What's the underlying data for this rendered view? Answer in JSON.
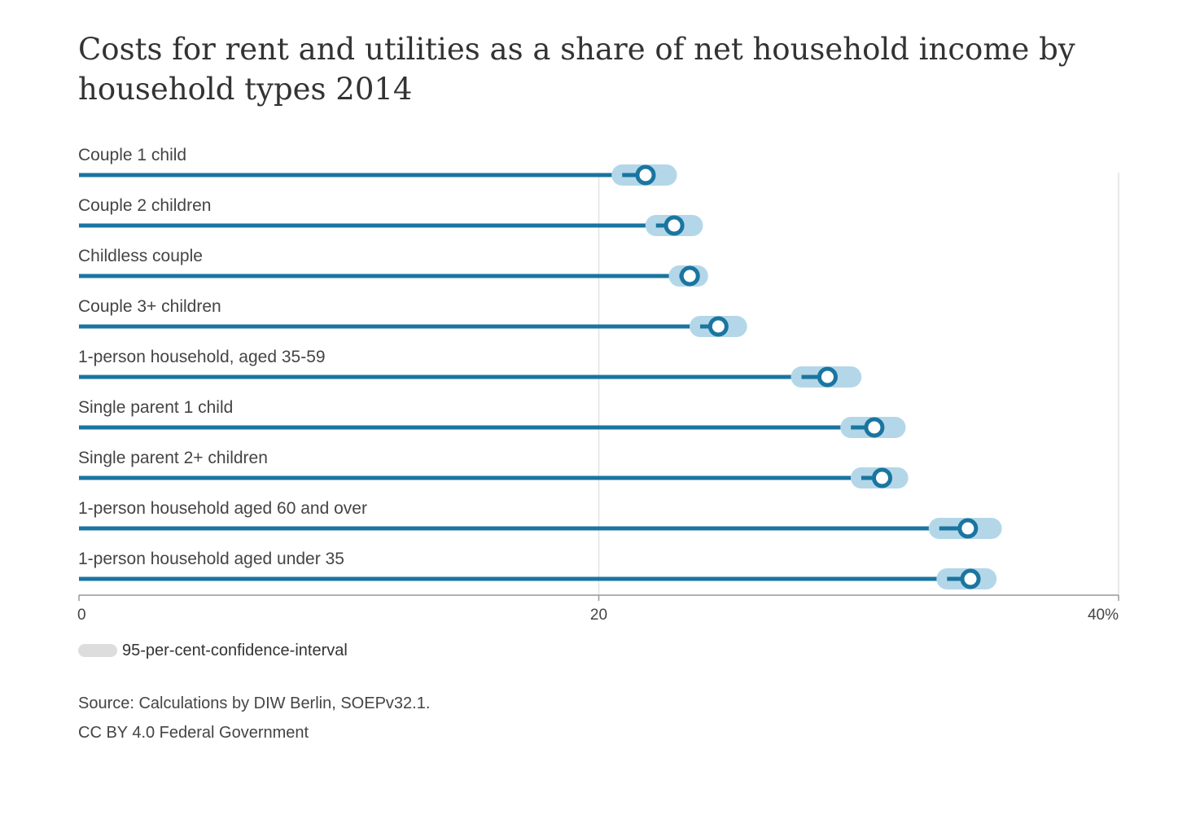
{
  "chart_data": {
    "type": "dot-with-confidence-interval",
    "title": "Costs for rent and utilities as a share of net household income by household types 2014",
    "categories": [
      "Couple 1 child",
      "Couple 2 children",
      "Childless couple",
      "Couple 3+ children",
      "1-person household, aged 35-59",
      "Single parent 1 child",
      "Single parent 2+ children",
      "1-person household aged 60 and over",
      "1-person household aged under 35"
    ],
    "series": [
      {
        "name": "",
        "values": [
          21.8,
          22.9,
          23.5,
          24.6,
          28.8,
          30.6,
          30.9,
          34.2,
          34.3
        ],
        "ci_low": [
          20.9,
          22.2,
          23.1,
          23.9,
          27.8,
          29.7,
          30.1,
          33.1,
          33.4
        ],
        "ci_high": [
          22.6,
          23.6,
          23.8,
          25.3,
          29.7,
          31.4,
          31.5,
          35.1,
          34.9
        ]
      }
    ],
    "xlim": [
      0,
      40
    ],
    "ticks": [
      {
        "value": 0,
        "label": "0"
      },
      {
        "value": 20,
        "label": "20"
      },
      {
        "value": 40,
        "label": "40%"
      }
    ],
    "grid": true,
    "legend_position": "bottom-left",
    "legend": "95-per-cent-confidence-interval",
    "colors": {
      "line": "#1a75a0",
      "ci": "#b3d7e8",
      "legend_swatch": "#dddddd",
      "grid": "#e2e2e2"
    }
  },
  "source_lines": [
    "Source: Calculations by DIW Berlin, SOEPv32.1.",
    "CC BY 4.0 Federal Government"
  ]
}
